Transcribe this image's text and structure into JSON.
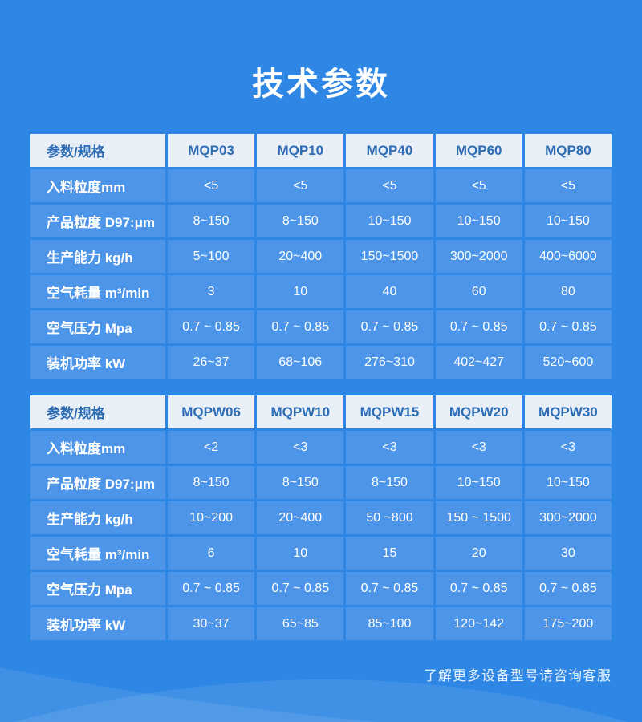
{
  "page": {
    "title": "技术参数",
    "footer_note": "了解更多设备型号请咨询客服"
  },
  "colors": {
    "background": "#2e87e4",
    "row_bg": "#4d95e8",
    "header_bg": "#e9eff7",
    "header_text": "#2e6cb4",
    "cell_text": "#ffffff",
    "wave_overlay": "#ffffff"
  },
  "tables": [
    {
      "name": "mqp-series",
      "header": [
        "参数/规格",
        "MQP03",
        "MQP10",
        "MQP40",
        "MQP60",
        "MQP80"
      ],
      "rows": [
        [
          "入料粒度mm",
          "<5",
          "<5",
          "<5",
          "<5",
          "<5"
        ],
        [
          "产品粒度 D97:μm",
          "8~150",
          "8~150",
          "10~150",
          "10~150",
          "10~150"
        ],
        [
          "生产能力 kg/h",
          "5~100",
          "20~400",
          "150~1500",
          "300~2000",
          "400~6000"
        ],
        [
          "空气耗量 m³/min",
          "3",
          "10",
          "40",
          "60",
          "80"
        ],
        [
          "空气压力 Mpa",
          "0.7 ~ 0.85",
          "0.7 ~ 0.85",
          "0.7 ~ 0.85",
          "0.7 ~ 0.85",
          "0.7 ~ 0.85"
        ],
        [
          "装机功率 kW",
          "26~37",
          "68~106",
          "276~310",
          "402~427",
          "520~600"
        ]
      ]
    },
    {
      "name": "mqpw-series",
      "header": [
        "参数/规格",
        "MQPW06",
        "MQPW10",
        "MQPW15",
        "MQPW20",
        "MQPW30"
      ],
      "rows": [
        [
          "入料粒度mm",
          "<2",
          "<3",
          "<3",
          "<3",
          "<3"
        ],
        [
          "产品粒度 D97:μm",
          "8~150",
          "8~150",
          "8~150",
          "10~150",
          "10~150"
        ],
        [
          "生产能力 kg/h",
          "10~200",
          "20~400",
          "50 ~800",
          "150 ~ 1500",
          "300~2000"
        ],
        [
          "空气耗量 m³/min",
          "6",
          "10",
          "15",
          "20",
          "30"
        ],
        [
          "空气压力 Mpa",
          "0.7 ~ 0.85",
          "0.7 ~ 0.85",
          "0.7 ~ 0.85",
          "0.7 ~ 0.85",
          "0.7 ~ 0.85"
        ],
        [
          "装机功率 kW",
          "30~37",
          "65~85",
          "85~100",
          "120~142",
          "175~200"
        ]
      ]
    }
  ]
}
